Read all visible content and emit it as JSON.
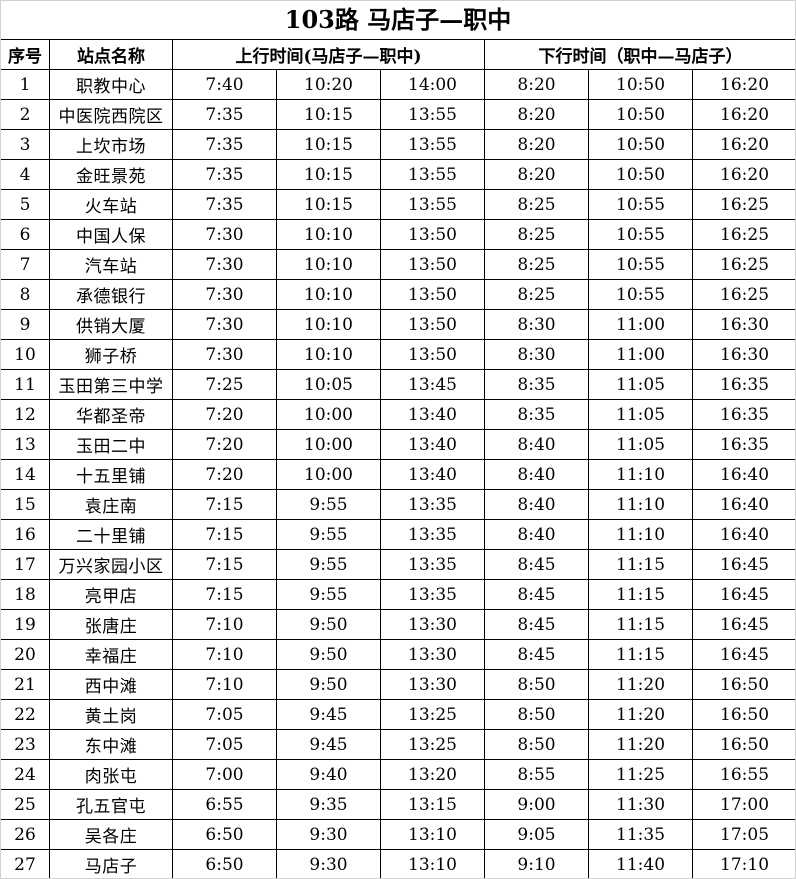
{
  "title": "103路  马店子—职中",
  "headers": {
    "no": "序号",
    "station": "站点名称",
    "up": "上行时间(马店子—职中)",
    "down": "下行时间（职中—马店子）"
  },
  "rows": [
    [
      "1",
      "职教中心",
      "7:40",
      "10:20",
      "14:00",
      "8:20",
      "10:50",
      "16:20"
    ],
    [
      "2",
      "中医院西院区",
      "7:35",
      "10:15",
      "13:55",
      "8:20",
      "10:50",
      "16:20"
    ],
    [
      "3",
      "上坎市场",
      "7:35",
      "10:15",
      "13:55",
      "8:20",
      "10:50",
      "16:20"
    ],
    [
      "4",
      "金旺景苑",
      "7:35",
      "10:15",
      "13:55",
      "8:20",
      "10:50",
      "16:20"
    ],
    [
      "5",
      "火车站",
      "7:35",
      "10:15",
      "13:55",
      "8:25",
      "10:55",
      "16:25"
    ],
    [
      "6",
      "中国人保",
      "7:30",
      "10:10",
      "13:50",
      "8:25",
      "10:55",
      "16:25"
    ],
    [
      "7",
      "汽车站",
      "7:30",
      "10:10",
      "13:50",
      "8:25",
      "10:55",
      "16:25"
    ],
    [
      "8",
      "承德银行",
      "7:30",
      "10:10",
      "13:50",
      "8:25",
      "10:55",
      "16:25"
    ],
    [
      "9",
      "供销大厦",
      "7:30",
      "10:10",
      "13:50",
      "8:30",
      "11:00",
      "16:30"
    ],
    [
      "10",
      "狮子桥",
      "7:30",
      "10:10",
      "13:50",
      "8:30",
      "11:00",
      "16:30"
    ],
    [
      "11",
      "玉田第三中学",
      "7:25",
      "10:05",
      "13:45",
      "8:35",
      "11:05",
      "16:35"
    ],
    [
      "12",
      "华都圣帝",
      "7:20",
      "10:00",
      "13:40",
      "8:35",
      "11:05",
      "16:35"
    ],
    [
      "13",
      "玉田二中",
      "7:20",
      "10:00",
      "13:40",
      "8:40",
      "11:05",
      "16:35"
    ],
    [
      "14",
      "十五里铺",
      "7:20",
      "10:00",
      "13:40",
      "8:40",
      "11:10",
      "16:40"
    ],
    [
      "15",
      "袁庄南",
      "7:15",
      "9:55",
      "13:35",
      "8:40",
      "11:10",
      "16:40"
    ],
    [
      "16",
      "二十里铺",
      "7:15",
      "9:55",
      "13:35",
      "8:40",
      "11:10",
      "16:40"
    ],
    [
      "17",
      "万兴家园小区",
      "7:15",
      "9:55",
      "13:35",
      "8:45",
      "11:15",
      "16:45"
    ],
    [
      "18",
      "亮甲店",
      "7:15",
      "9:55",
      "13:35",
      "8:45",
      "11:15",
      "16:45"
    ],
    [
      "19",
      "张唐庄",
      "7:10",
      "9:50",
      "13:30",
      "8:45",
      "11:15",
      "16:45"
    ],
    [
      "20",
      "幸福庄",
      "7:10",
      "9:50",
      "13:30",
      "8:45",
      "11:15",
      "16:45"
    ],
    [
      "21",
      "西中滩",
      "7:10",
      "9:50",
      "13:30",
      "8:50",
      "11:20",
      "16:50"
    ],
    [
      "22",
      "黄土岗",
      "7:05",
      "9:45",
      "13:25",
      "8:50",
      "11:20",
      "16:50"
    ],
    [
      "23",
      "东中滩",
      "7:05",
      "9:45",
      "13:25",
      "8:50",
      "11:20",
      "16:50"
    ],
    [
      "24",
      "肉张屯",
      "7:00",
      "9:40",
      "13:20",
      "8:55",
      "11:25",
      "16:55"
    ],
    [
      "25",
      "孔五官屯",
      "6:55",
      "9:35",
      "13:15",
      "9:00",
      "11:30",
      "17:00"
    ],
    [
      "26",
      "吴各庄",
      "6:50",
      "9:30",
      "13:10",
      "9:05",
      "11:35",
      "17:05"
    ],
    [
      "27",
      "马店子",
      "6:50",
      "9:30",
      "13:10",
      "9:10",
      "11:40",
      "17:10"
    ]
  ]
}
